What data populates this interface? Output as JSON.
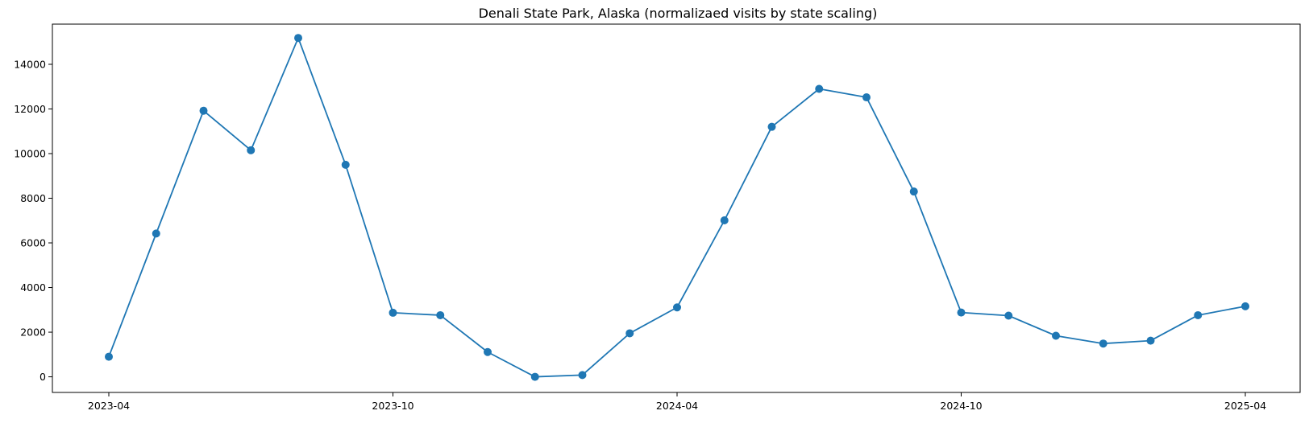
{
  "chart_data": {
    "type": "line",
    "title": "Denali State Park, Alaska (normalizaed visits by state scaling)",
    "xlabel": "",
    "ylabel": "",
    "x": [
      "2023-04",
      "2023-05",
      "2023-06",
      "2023-07",
      "2023-08",
      "2023-09",
      "2023-10",
      "2023-11",
      "2023-12",
      "2024-01",
      "2024-02",
      "2024-03",
      "2024-04",
      "2024-05",
      "2024-06",
      "2024-07",
      "2024-08",
      "2024-09",
      "2024-10",
      "2024-11",
      "2024-12",
      "2025-01",
      "2025-02",
      "2025-03",
      "2025-04"
    ],
    "series": [
      {
        "values": [
          900,
          6420,
          11920,
          10150,
          15180,
          9500,
          2870,
          2760,
          1110,
          0,
          80,
          1950,
          3110,
          7010,
          11200,
          12900,
          12520,
          8300,
          2880,
          2740,
          1840,
          1490,
          1620,
          2760,
          3160
        ],
        "color": "#1f77b4",
        "marker": "circle"
      }
    ],
    "x_ticks": [
      "2023-04",
      "2023-10",
      "2024-04",
      "2024-10",
      "2025-04"
    ],
    "y_ticks": [
      0,
      2000,
      4000,
      6000,
      8000,
      10000,
      12000,
      14000
    ],
    "ylim": [
      -700,
      15800
    ],
    "grid": false,
    "legend": false
  }
}
